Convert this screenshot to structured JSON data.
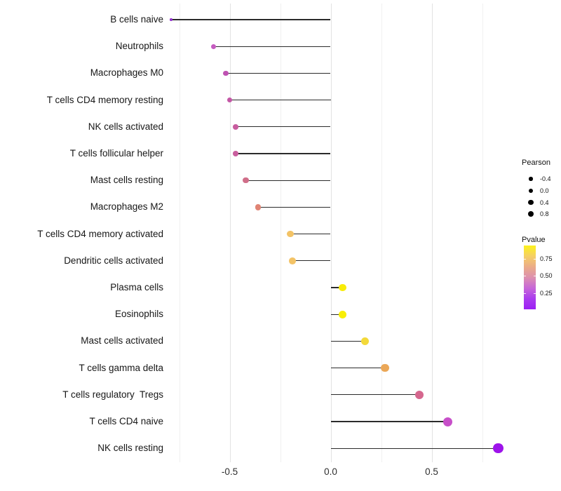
{
  "chart_data": {
    "type": "lollipop",
    "orientation": "horizontal",
    "title": "",
    "xlabel": "",
    "ylabel": "",
    "xlim": [
      -0.81,
      0.86
    ],
    "grid": "vertical-only",
    "legend_position": "right",
    "x_axis": {
      "major_ticks": [
        -0.5,
        0.0,
        0.5
      ],
      "tick_labels": [
        "-0.5",
        "0.0",
        "0.5"
      ],
      "minor_gridlines": [
        -0.75,
        -0.25,
        0.25,
        0.75
      ]
    },
    "stem_color": "#2b2b2b",
    "points": [
      {
        "label": "B cells naive",
        "pearson": -0.79,
        "color": "#9232cd",
        "radius": 1.8
      },
      {
        "label": "Neutrophils",
        "pearson": -0.58,
        "color": "#c55cc0",
        "radius": 3.6
      },
      {
        "label": "Macrophages M0",
        "pearson": -0.52,
        "color": "#bf52b2",
        "radius": 3.8
      },
      {
        "label": "T cells CD4 memory resting",
        "pearson": -0.5,
        "color": "#c457a6",
        "radius": 3.8
      },
      {
        "label": "NK cells activated",
        "pearson": -0.47,
        "color": "#c85d9f",
        "radius": 3.9
      },
      {
        "label": "T cells follicular helper",
        "pearson": -0.47,
        "color": "#c95f9e",
        "radius": 3.9
      },
      {
        "label": "Mast cells resting",
        "pearson": -0.42,
        "color": "#d06e89",
        "radius": 4.1
      },
      {
        "label": "Macrophages M2",
        "pearson": -0.36,
        "color": "#e08474",
        "radius": 4.3
      },
      {
        "label": "T cells CD4 memory activated",
        "pearson": -0.2,
        "color": "#f3c366",
        "radius": 4.9
      },
      {
        "label": "Dendritic cells activated",
        "pearson": -0.19,
        "color": "#f3c366",
        "radius": 4.9
      },
      {
        "label": "Plasma cells",
        "pearson": 0.06,
        "color": "#f8ec08",
        "radius": 5.4
      },
      {
        "label": "Eosinophils",
        "pearson": 0.06,
        "color": "#f8ee06",
        "radius": 5.4
      },
      {
        "label": "Mast cells activated",
        "pearson": 0.17,
        "color": "#f3d93a",
        "radius": 5.6
      },
      {
        "label": "T cells gamma delta",
        "pearson": 0.27,
        "color": "#eba757",
        "radius": 5.9
      },
      {
        "label": "T cells regulatory  Tregs",
        "pearson": 0.44,
        "color": "#d5678e",
        "radius": 6.2
      },
      {
        "label": "T cells CD4 naive",
        "pearson": 0.58,
        "color": "#c74fc9",
        "radius": 6.5
      },
      {
        "label": "NK cells resting",
        "pearson": 0.83,
        "color": "#9d13ea",
        "radius": 7.2
      }
    ]
  },
  "legend": {
    "pearson": {
      "title": "Pearson",
      "dot_color": "#000000",
      "items": [
        {
          "label": "-0.4",
          "radius": 2.7
        },
        {
          "label": "0.0",
          "radius": 3.2
        },
        {
          "label": "0.4",
          "radius": 3.6
        },
        {
          "label": "0.8",
          "radius": 4.1
        }
      ]
    },
    "pvalue": {
      "title": "Pvalue",
      "tick_labels": [
        "0.75",
        "0.50",
        "0.25"
      ],
      "gradient_top_to_bottom": [
        "#fcf21b",
        "#f5cf66",
        "#ebac88",
        "#dd90af",
        "#c767d8",
        "#aa3cee",
        "#9c1ff4"
      ]
    }
  }
}
